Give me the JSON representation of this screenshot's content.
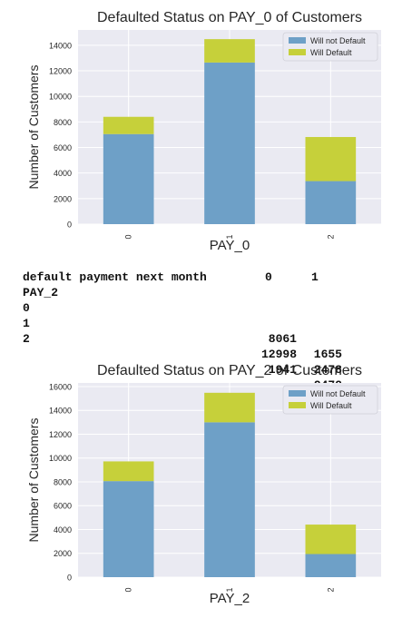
{
  "charts": [
    {
      "title": "Defaulted Status on PAY_0 of Customers",
      "xlabel": "PAY_0",
      "ylabel": "Number of Customers",
      "categories": [
        "0",
        "1",
        "2"
      ],
      "yticks": [
        0,
        2000,
        4000,
        6000,
        8000,
        10000,
        12000,
        14000
      ],
      "ylim": [
        0,
        15200
      ],
      "series": [
        {
          "name": "Will not Default",
          "values": [
            7050,
            12650,
            3370
          ]
        },
        {
          "name": "Will Default",
          "values": [
            1350,
            1830,
            3450
          ]
        }
      ]
    },
    {
      "title": "Defaulted Status on PAY_2 of Customers",
      "xlabel": "PAY_2",
      "ylabel": "Number of Customers",
      "categories": [
        "0",
        "1",
        "2"
      ],
      "yticks": [
        0,
        2000,
        4000,
        6000,
        8000,
        10000,
        12000,
        14000,
        16000
      ],
      "ylim": [
        0,
        16300
      ],
      "series": [
        {
          "name": "Will not Default",
          "values": [
            8061,
            12998,
            1941
          ]
        },
        {
          "name": "Will Default",
          "values": [
            1655,
            2478,
            2472
          ]
        }
      ]
    }
  ],
  "chart_data": [
    {
      "type": "bar",
      "stacked": true,
      "title": "Defaulted Status on PAY_0 of Customers",
      "xlabel": "PAY_0",
      "ylabel": "Number of Customers",
      "categories": [
        "0",
        "1",
        "2"
      ],
      "ylim": [
        0,
        15200
      ],
      "grid": true,
      "legend": "top-right",
      "series": [
        {
          "name": "Will not Default",
          "values": [
            7050,
            12650,
            3370
          ]
        },
        {
          "name": "Will Default",
          "values": [
            1350,
            1830,
            3450
          ]
        }
      ]
    },
    {
      "type": "bar",
      "stacked": true,
      "title": "Defaulted Status on PAY_2 of Customers",
      "xlabel": "PAY_2",
      "ylabel": "Number of Customers",
      "categories": [
        "0",
        "1",
        "2"
      ],
      "ylim": [
        0,
        16300
      ],
      "grid": true,
      "legend": "top-right",
      "series": [
        {
          "name": "Will not Default",
          "values": [
            8061,
            12998,
            1941
          ]
        },
        {
          "name": "Will Default",
          "values": [
            1655,
            2478,
            2472
          ]
        }
      ]
    }
  ],
  "table": {
    "header_label": "default payment next month",
    "col0": "0",
    "col1": "1",
    "index_name": "PAY_2",
    "rows": [
      {
        "index": "0",
        "v0": "8061",
        "v1": "1655"
      },
      {
        "index": "1",
        "v0": "12998",
        "v1": "2478"
      },
      {
        "index": "2",
        "v0": "1941",
        "v1": "2472"
      }
    ]
  },
  "colors": {
    "not_default": "#6ea0c7",
    "default": "#c6d03a",
    "plot_bg": "#eaeaf2",
    "grid": "#ffffff",
    "text": "#262626"
  }
}
